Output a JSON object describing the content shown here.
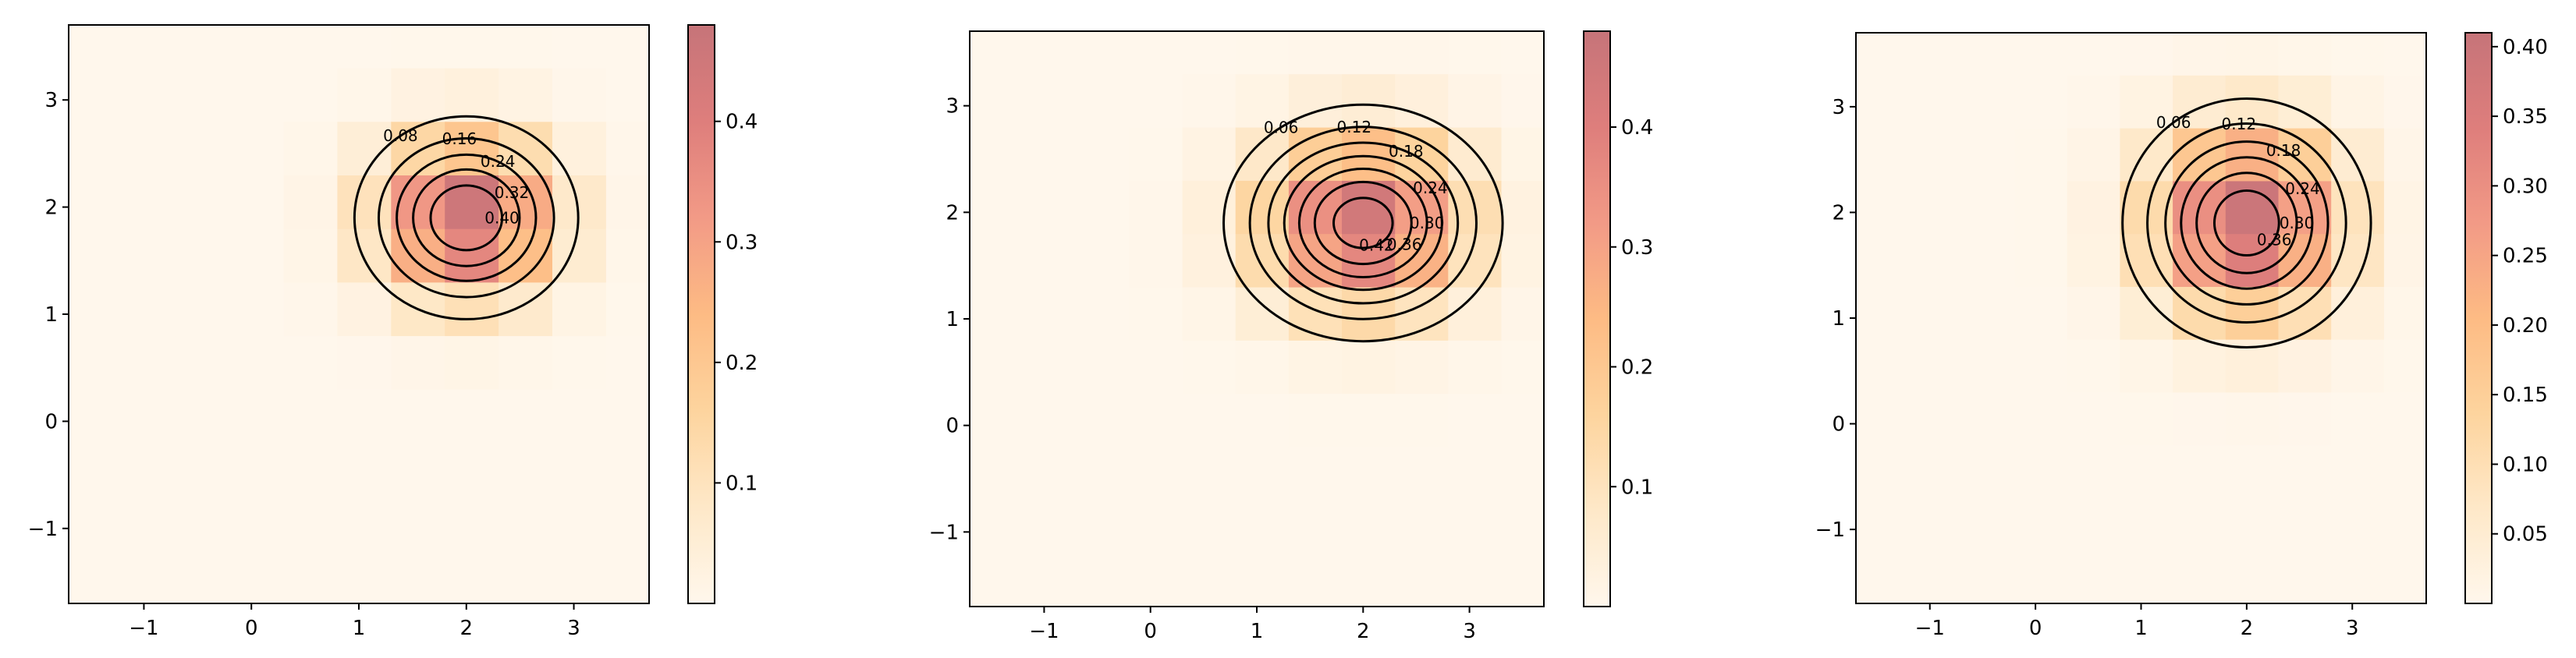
{
  "figure": {
    "panel_count": 3,
    "colormap": [
      "#fff7ec",
      "#fee8c8",
      "#fdd49e",
      "#fdbb84",
      "#f29a86",
      "#de7e7c",
      "#c67479"
    ],
    "contour_color": "#000000",
    "frame_color": "#000000"
  },
  "chart_data": [
    {
      "type": "heatmap",
      "overlay": "contour",
      "title": "",
      "xlabel": "",
      "ylabel": "",
      "xlim": [
        -1.7,
        3.7
      ],
      "ylim": [
        -1.7,
        3.7
      ],
      "x_ticks": [
        -1,
        0,
        1,
        2,
        3
      ],
      "y_ticks": [
        -1,
        0,
        1,
        2,
        3
      ],
      "colorbar": {
        "min": 0,
        "max": 0.48,
        "ticks": [
          "0.1",
          "0.2",
          "0.3",
          "0.4"
        ],
        "tick_values": [
          0.1,
          0.2,
          0.3,
          0.4
        ]
      },
      "grid": false,
      "peak": {
        "x": 2.0,
        "y": 1.9,
        "value": 0.48
      },
      "spread": {
        "sx": 0.55,
        "sy": 0.5
      },
      "contour_levels": [
        0.08,
        0.16,
        0.24,
        0.32,
        0.4
      ],
      "contour_labels": [
        "0.08",
        "0.16",
        "0.24",
        "0.32",
        "0.40"
      ]
    },
    {
      "type": "heatmap",
      "overlay": "contour",
      "title": "",
      "xlabel": "",
      "ylabel": "",
      "xlim": [
        -1.7,
        3.7
      ],
      "ylim": [
        -1.7,
        3.7
      ],
      "x_ticks": [
        -1,
        0,
        1,
        2,
        3
      ],
      "y_ticks": [
        -1,
        0,
        1,
        2,
        3
      ],
      "colorbar": {
        "min": 0,
        "max": 0.48,
        "ticks": [
          "0.1",
          "0.2",
          "0.3",
          "0.4"
        ],
        "tick_values": [
          0.1,
          0.2,
          0.3,
          0.4
        ]
      },
      "grid": false,
      "peak": {
        "x": 2.0,
        "y": 1.9,
        "value": 0.46
      },
      "spread": {
        "sx": 0.65,
        "sy": 0.55
      },
      "contour_levels": [
        0.06,
        0.12,
        0.18,
        0.24,
        0.3,
        0.36,
        0.42
      ],
      "contour_labels": [
        "0.06",
        "0.12",
        "0.18",
        "0.24",
        "0.30",
        "0.36",
        "0.42"
      ]
    },
    {
      "type": "heatmap",
      "overlay": "contour",
      "title": "",
      "xlabel": "",
      "ylabel": "",
      "xlim": [
        -1.7,
        3.7
      ],
      "ylim": [
        -1.7,
        3.7
      ],
      "x_ticks": [
        -1,
        0,
        1,
        2,
        3
      ],
      "y_ticks": [
        -1,
        0,
        1,
        2,
        3
      ],
      "colorbar": {
        "min": 0,
        "max": 0.41,
        "ticks": [
          "0.05",
          "0.10",
          "0.15",
          "0.20",
          "0.25",
          "0.30",
          "0.35",
          "0.40"
        ],
        "tick_values": [
          0.05,
          0.1,
          0.15,
          0.2,
          0.25,
          0.3,
          0.35,
          0.4
        ]
      },
      "grid": false,
      "peak": {
        "x": 2.0,
        "y": 1.9,
        "value": 0.41
      },
      "spread": {
        "sx": 0.6,
        "sy": 0.6
      },
      "contour_levels": [
        0.06,
        0.12,
        0.18,
        0.24,
        0.3,
        0.36
      ],
      "contour_labels": [
        "0.06",
        "0.12",
        "0.18",
        "0.24",
        "0.30",
        "0.36"
      ]
    }
  ]
}
